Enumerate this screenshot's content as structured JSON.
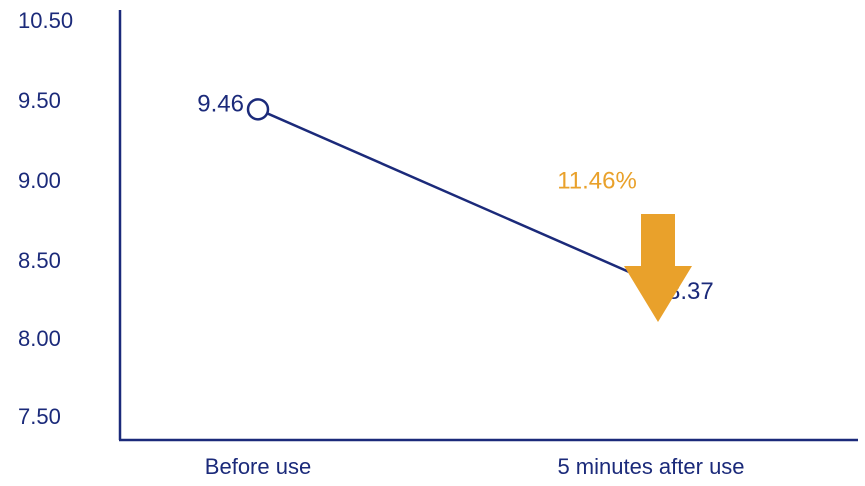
{
  "chart_data": {
    "type": "line",
    "title": "",
    "xlabel": "",
    "ylabel": "",
    "categories": [
      "Before use",
      "5 minutes after use"
    ],
    "series": [
      {
        "values": [
          9.46,
          8.37
        ]
      }
    ],
    "data_labels": [
      "9.46",
      "8.37"
    ],
    "y_ticks": [
      "10.50",
      "9.50",
      "9.00",
      "8.50",
      "8.00",
      "7.50"
    ],
    "annotation": {
      "text": "11.46%",
      "direction": "down"
    },
    "grid": false,
    "legend": "none"
  },
  "colors": {
    "line": "#1b2a7a",
    "text": "#1b2a7a",
    "annotation": "#e9a12b",
    "marker_fill": "#ffffff"
  }
}
